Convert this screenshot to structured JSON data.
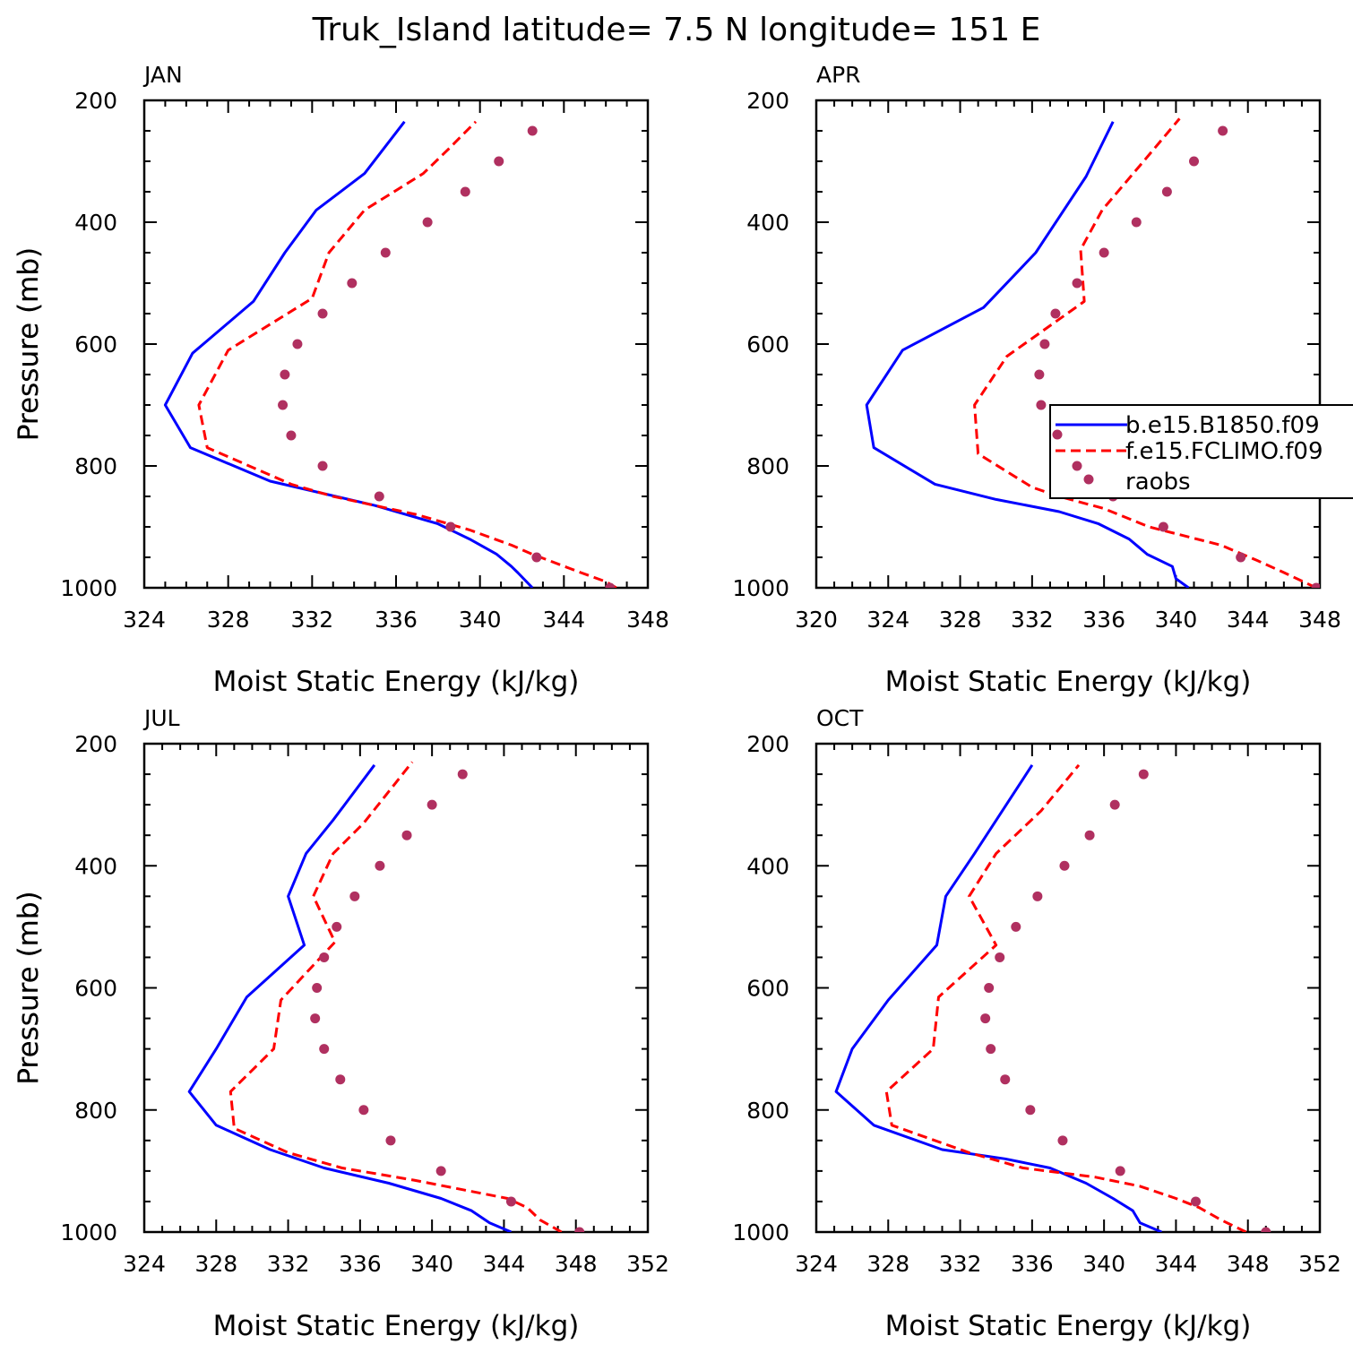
{
  "title": "Truk_Island  latitude= 7.5 N longitude= 151 E",
  "colors": {
    "model_b": "#0000ff",
    "model_f": "#ff0000",
    "raobs": "#b03060",
    "axis": "#000000"
  },
  "chart_data": [
    {
      "type": "line",
      "panel": "JAN",
      "xlabel": "Moist Static Energy (kJ/kg)",
      "ylabel": "Pressure (mb)",
      "xlim": [
        324,
        348
      ],
      "xticks": [
        324,
        328,
        332,
        336,
        340,
        344,
        348
      ],
      "ylim": [
        1000,
        200
      ],
      "yticks": [
        200,
        400,
        600,
        800,
        1000
      ],
      "series": [
        {
          "name": "b.e15.B1850.f09",
          "style": "solid",
          "color": "#0000ff",
          "x": [
            342.5,
            341.8,
            341.5,
            340.8,
            339.5,
            338.0,
            335.0,
            330.0,
            326.2,
            325.0,
            326.3,
            329.2,
            330.7,
            332.2,
            334.5,
            336.4
          ],
          "y": [
            1000,
            975,
            965,
            945,
            920,
            895,
            865,
            825,
            770,
            700,
            615,
            530,
            450,
            380,
            320,
            235
          ]
        },
        {
          "name": "f.e15.FCLIMO.f09",
          "style": "dashed",
          "color": "#ff0000",
          "x": [
            346.5,
            346.0,
            344.8,
            342.5,
            341.5,
            339.5,
            337.0,
            335.0,
            333.0,
            331.0,
            327.0,
            326.6,
            328.0,
            332.0,
            332.8,
            334.5,
            337.3,
            338.5,
            339.8
          ],
          "y": [
            1000,
            990,
            975,
            945,
            930,
            905,
            880,
            865,
            850,
            830,
            770,
            700,
            610,
            525,
            450,
            380,
            320,
            280,
            235
          ]
        },
        {
          "name": "raobs",
          "style": "dots",
          "color": "#b03060",
          "x": [
            346.2,
            342.7,
            338.6,
            335.2,
            332.5,
            331.0,
            330.6,
            330.7,
            331.3,
            332.5,
            333.9,
            335.5,
            337.5,
            339.3,
            340.9,
            342.5
          ],
          "y": [
            1000,
            950,
            900,
            850,
            800,
            750,
            700,
            650,
            600,
            550,
            500,
            450,
            400,
            350,
            300,
            250
          ]
        }
      ]
    },
    {
      "type": "line",
      "panel": "APR",
      "xlabel": "Moist Static Energy (kJ/kg)",
      "ylabel": "Pressure (mb)",
      "xlim": [
        320,
        348
      ],
      "xticks": [
        320,
        324,
        328,
        332,
        336,
        340,
        344,
        348
      ],
      "ylim": [
        1000,
        200
      ],
      "yticks": [
        200,
        400,
        600,
        800,
        1000
      ],
      "series": [
        {
          "name": "b.e15.B1850.f09",
          "style": "solid",
          "color": "#0000ff",
          "x": [
            340.7,
            340.0,
            339.8,
            338.4,
            337.4,
            335.7,
            333.5,
            330.0,
            326.6,
            323.2,
            322.8,
            324.8,
            329.3,
            332.2,
            335.0,
            336.5
          ],
          "y": [
            1000,
            985,
            965,
            945,
            920,
            895,
            875,
            855,
            830,
            770,
            700,
            610,
            540,
            450,
            325,
            235
          ]
        },
        {
          "name": "f.e15.FCLIMO.f09",
          "style": "dashed",
          "color": "#ff0000",
          "x": [
            347.8,
            346.0,
            344.5,
            342.5,
            340.5,
            338.5,
            336.0,
            333.5,
            332.0,
            329.0,
            328.8,
            330.6,
            334.9,
            334.7,
            335.9,
            338.2,
            340.2
          ],
          "y": [
            1000,
            975,
            955,
            930,
            915,
            900,
            870,
            850,
            835,
            780,
            700,
            620,
            530,
            445,
            380,
            300,
            230
          ]
        },
        {
          "name": "raobs",
          "style": "dots",
          "color": "#b03060",
          "x": [
            347.8,
            343.6,
            339.3,
            336.5,
            334.5,
            333.5,
            332.5,
            332.4,
            332.7,
            333.3,
            334.5,
            336.0,
            337.8,
            339.5,
            341.0,
            342.6
          ],
          "y": [
            1000,
            950,
            900,
            850,
            800,
            750,
            700,
            650,
            600,
            550,
            500,
            450,
            400,
            350,
            300,
            250
          ]
        }
      ],
      "legend": {
        "entries": [
          "b.e15.B1850.f09",
          "f.e15.FCLIMO.f09",
          "raobs"
        ]
      }
    },
    {
      "type": "line",
      "panel": "JUL",
      "xlabel": "Moist Static Energy (kJ/kg)",
      "ylabel": "Pressure (mb)",
      "xlim": [
        324,
        352
      ],
      "xticks": [
        324,
        328,
        332,
        336,
        340,
        344,
        348,
        352
      ],
      "ylim": [
        1000,
        200
      ],
      "yticks": [
        200,
        400,
        600,
        800,
        1000
      ],
      "series": [
        {
          "name": "b.e15.B1850.f09",
          "style": "solid",
          "color": "#0000ff",
          "x": [
            344.4,
            343.2,
            342.2,
            340.5,
            337.6,
            334.0,
            331.0,
            328.0,
            326.5,
            328.0,
            329.7,
            332.9,
            332.0,
            333.0,
            334.5,
            336.8
          ],
          "y": [
            1000,
            985,
            965,
            945,
            920,
            895,
            865,
            825,
            770,
            700,
            615,
            530,
            450,
            380,
            325,
            235
          ]
        },
        {
          "name": "f.e15.FCLIMO.f09",
          "style": "dashed",
          "color": "#ff0000",
          "x": [
            347.2,
            346.0,
            345.3,
            344.2,
            339.0,
            335.0,
            332.0,
            329.0,
            328.8,
            331.2,
            331.6,
            334.6,
            333.4,
            334.5,
            336.2,
            338.9
          ],
          "y": [
            1000,
            980,
            960,
            945,
            915,
            895,
            870,
            830,
            770,
            700,
            620,
            525,
            450,
            380,
            330,
            230
          ]
        },
        {
          "name": "raobs",
          "style": "dots",
          "color": "#b03060",
          "x": [
            348.2,
            344.4,
            340.5,
            337.7,
            336.2,
            334.9,
            334.0,
            333.5,
            333.6,
            334.0,
            334.7,
            335.7,
            337.1,
            338.6,
            340.0,
            341.7
          ],
          "y": [
            1000,
            950,
            900,
            850,
            800,
            750,
            700,
            650,
            600,
            550,
            500,
            450,
            400,
            350,
            300,
            250
          ]
        }
      ]
    },
    {
      "type": "line",
      "panel": "OCT",
      "xlabel": "Moist Static Energy (kJ/kg)",
      "ylabel": "Pressure (mb)",
      "xlim": [
        324,
        352
      ],
      "xticks": [
        324,
        328,
        332,
        336,
        340,
        344,
        348,
        352
      ],
      "ylim": [
        1000,
        200
      ],
      "yticks": [
        200,
        400,
        600,
        800,
        1000
      ],
      "series": [
        {
          "name": "b.e15.B1850.f09",
          "style": "solid",
          "color": "#0000ff",
          "x": [
            343.2,
            342.0,
            341.6,
            340.5,
            339.0,
            337.0,
            334.5,
            331.0,
            327.2,
            325.1,
            326.0,
            328.0,
            330.7,
            331.2,
            332.8,
            336.0
          ],
          "y": [
            1000,
            985,
            965,
            945,
            920,
            895,
            880,
            865,
            825,
            770,
            700,
            620,
            530,
            450,
            380,
            235
          ]
        },
        {
          "name": "f.e15.FCLIMO.f09",
          "style": "dashed",
          "color": "#ff0000",
          "x": [
            347.9,
            346.5,
            345.3,
            344.0,
            342.0,
            339.5,
            335.5,
            332.5,
            328.2,
            327.9,
            330.5,
            330.8,
            334.0,
            332.5,
            334.0,
            336.5,
            338.6
          ],
          "y": [
            1000,
            980,
            960,
            945,
            925,
            910,
            895,
            870,
            825,
            770,
            700,
            615,
            530,
            450,
            380,
            310,
            235
          ]
        },
        {
          "name": "raobs",
          "style": "dots",
          "color": "#b03060",
          "x": [
            349.0,
            345.1,
            340.9,
            337.7,
            335.9,
            334.5,
            333.7,
            333.4,
            333.6,
            334.2,
            335.1,
            336.3,
            337.8,
            339.2,
            340.6,
            342.2
          ],
          "y": [
            1000,
            950,
            900,
            850,
            800,
            750,
            700,
            650,
            600,
            550,
            500,
            450,
            400,
            350,
            300,
            250
          ]
        }
      ]
    }
  ]
}
